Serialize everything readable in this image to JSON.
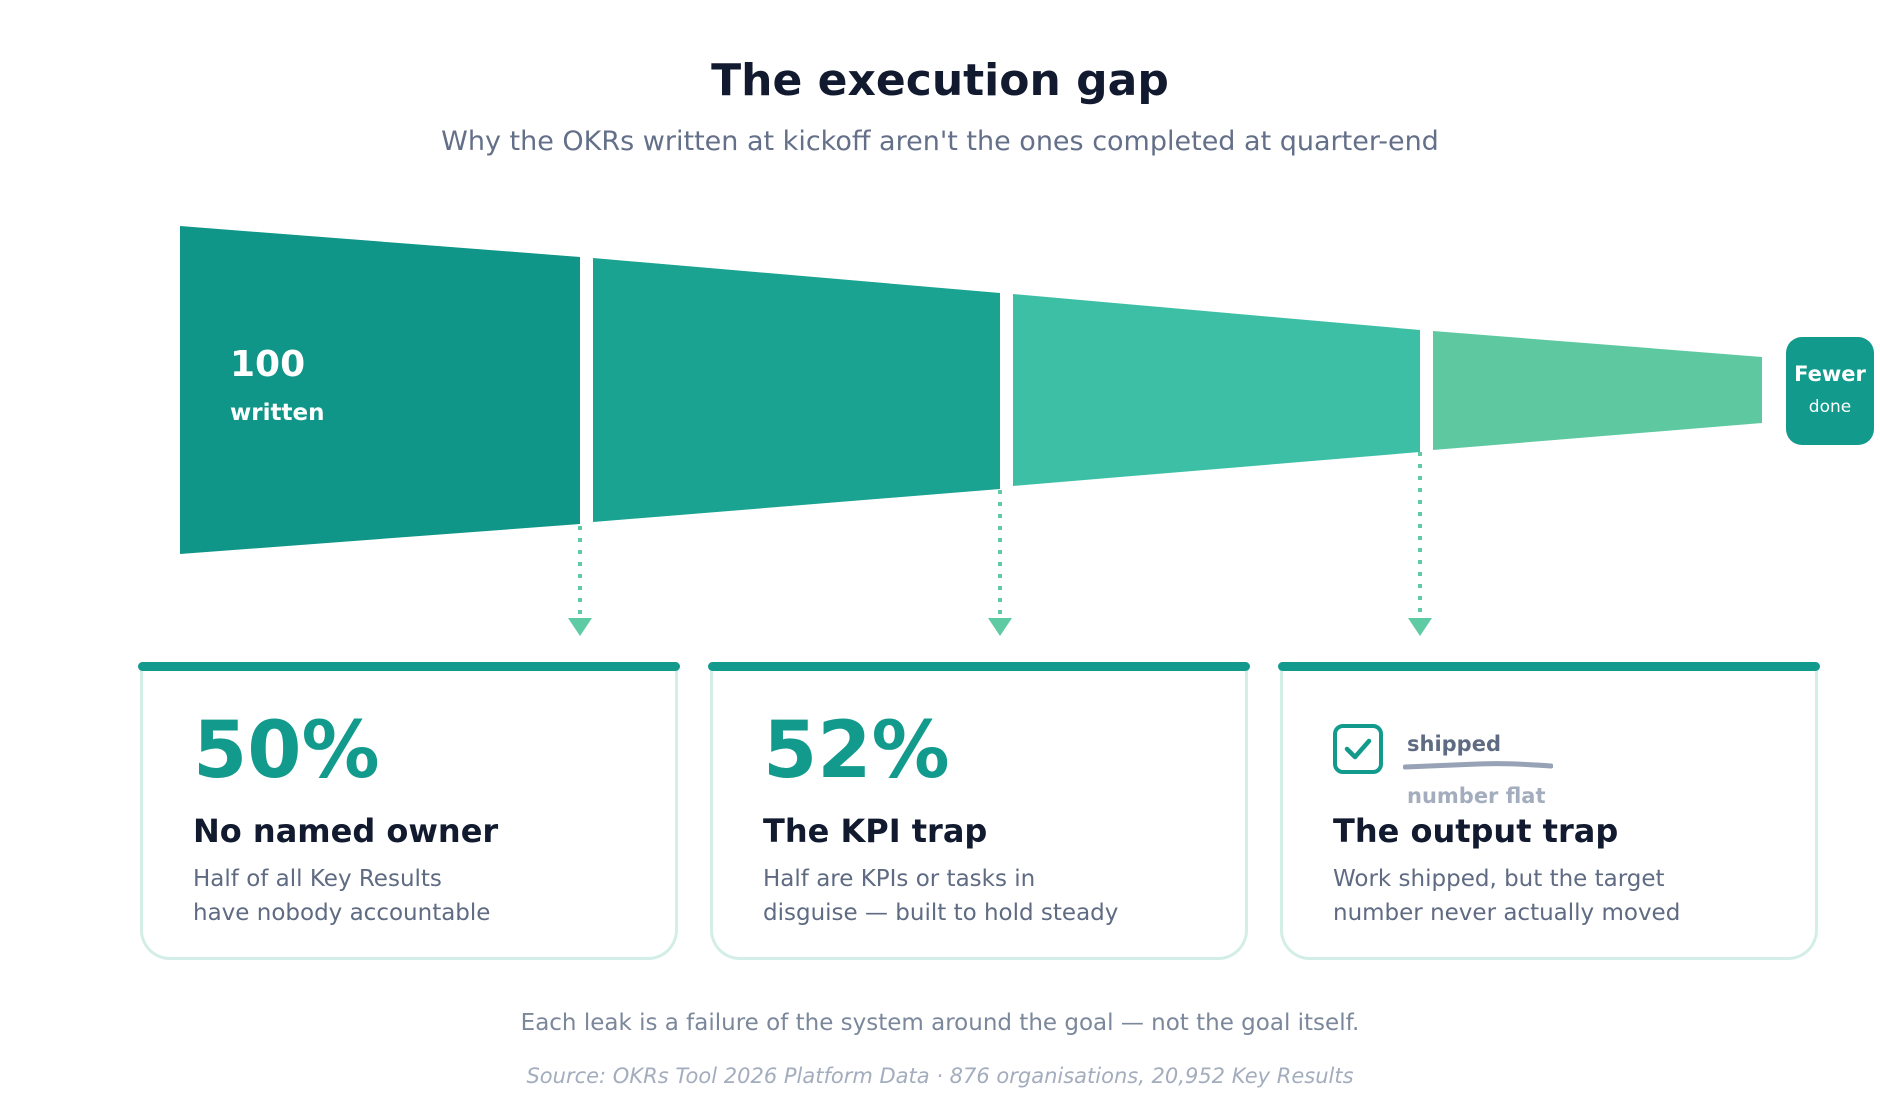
{
  "title": "The execution gap",
  "subtitle": "Why the OKRs written at kickoff aren't the ones completed at quarter-end",
  "funnel": {
    "start_value": "100",
    "start_label": "written",
    "end_value": "Fewer",
    "end_label": "done",
    "colors": [
      "#0f9688",
      "#1aa391",
      "#3dbfa6",
      "#5ec9a1"
    ],
    "arrow_color": "#5ecba5"
  },
  "cards": [
    {
      "stat": "50%",
      "heading": "No named owner",
      "desc_line1": "Half of all Key Results",
      "desc_line2": "have nobody accountable"
    },
    {
      "stat": "52%",
      "heading": "The KPI trap",
      "desc_line1": "Half are KPIs or tasks in",
      "desc_line2": "disguise — built to hold steady"
    },
    {
      "icon": "checkbox-icon",
      "tag_top": "shipped",
      "tag_bottom": "number flat",
      "heading": "The output trap",
      "desc_line1": "Work shipped, but the target",
      "desc_line2": "number never actually moved"
    }
  ],
  "note": "Each leak is a failure of the system around the goal — not the goal itself.",
  "source": "Source: OKRs Tool 2026 Platform Data · 876 organisations, 20,952 Key Results",
  "accent_color": "#129a8c"
}
